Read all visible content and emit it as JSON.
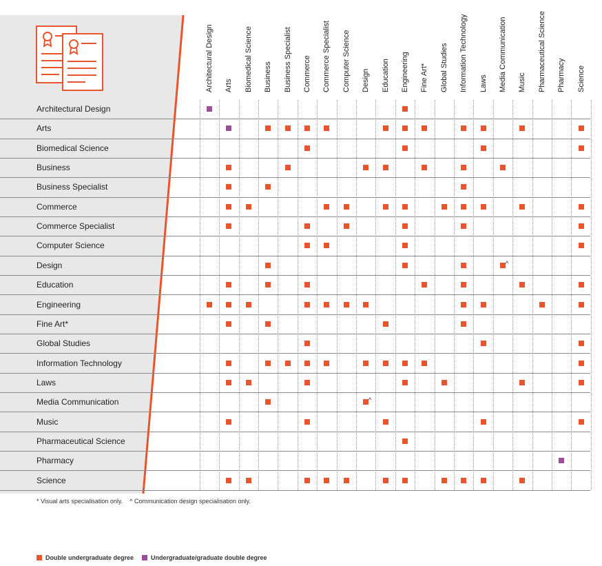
{
  "colors": {
    "double": "#e8552d",
    "ugpg": "#9b4f96",
    "panel": "#e8e8e8",
    "diagonal": "#e8552d",
    "icon": "#e8552d"
  },
  "icon": "certificate-documents-icon",
  "columns": [
    "Architectural Design",
    "Arts",
    "Biomedical Science",
    "Business",
    "Business Specialist",
    "Commerce",
    "Commerce Specialist",
    "Computer Science",
    "Design",
    "Education",
    "Engineering",
    "Fine Art*",
    "Global Studies",
    "Information Technology",
    "Laws",
    "Media Communication",
    "Music",
    "Pharmaceutical Science",
    "Pharmacy",
    "Science"
  ],
  "rows": [
    {
      "label": "Architectural Design",
      "marks": [
        {
          "col": 0,
          "type": "ugpg"
        },
        {
          "col": 10,
          "type": "double"
        }
      ]
    },
    {
      "label": "Arts",
      "marks": [
        {
          "col": 1,
          "type": "ugpg"
        },
        {
          "col": 3,
          "type": "double"
        },
        {
          "col": 4,
          "type": "double"
        },
        {
          "col": 5,
          "type": "double"
        },
        {
          "col": 6,
          "type": "double"
        },
        {
          "col": 9,
          "type": "double"
        },
        {
          "col": 10,
          "type": "double"
        },
        {
          "col": 11,
          "type": "double"
        },
        {
          "col": 13,
          "type": "double"
        },
        {
          "col": 14,
          "type": "double"
        },
        {
          "col": 16,
          "type": "double"
        },
        {
          "col": 19,
          "type": "double"
        }
      ]
    },
    {
      "label": "Biomedical Science",
      "marks": [
        {
          "col": 5,
          "type": "double"
        },
        {
          "col": 10,
          "type": "double"
        },
        {
          "col": 14,
          "type": "double"
        },
        {
          "col": 19,
          "type": "double"
        }
      ]
    },
    {
      "label": "Business",
      "marks": [
        {
          "col": 1,
          "type": "double"
        },
        {
          "col": 4,
          "type": "double"
        },
        {
          "col": 8,
          "type": "double"
        },
        {
          "col": 9,
          "type": "double"
        },
        {
          "col": 11,
          "type": "double"
        },
        {
          "col": 13,
          "type": "double"
        },
        {
          "col": 15,
          "type": "double"
        }
      ]
    },
    {
      "label": "Business Specialist",
      "marks": [
        {
          "col": 1,
          "type": "double"
        },
        {
          "col": 3,
          "type": "double"
        },
        {
          "col": 13,
          "type": "double"
        }
      ]
    },
    {
      "label": "Commerce",
      "marks": [
        {
          "col": 1,
          "type": "double"
        },
        {
          "col": 2,
          "type": "double"
        },
        {
          "col": 6,
          "type": "double"
        },
        {
          "col": 7,
          "type": "double"
        },
        {
          "col": 9,
          "type": "double"
        },
        {
          "col": 10,
          "type": "double"
        },
        {
          "col": 12,
          "type": "double"
        },
        {
          "col": 13,
          "type": "double"
        },
        {
          "col": 14,
          "type": "double"
        },
        {
          "col": 16,
          "type": "double"
        },
        {
          "col": 19,
          "type": "double"
        }
      ]
    },
    {
      "label": "Commerce Specialist",
      "marks": [
        {
          "col": 1,
          "type": "double"
        },
        {
          "col": 5,
          "type": "double"
        },
        {
          "col": 7,
          "type": "double"
        },
        {
          "col": 10,
          "type": "double"
        },
        {
          "col": 13,
          "type": "double"
        },
        {
          "col": 19,
          "type": "double"
        }
      ]
    },
    {
      "label": "Computer Science",
      "marks": [
        {
          "col": 5,
          "type": "double"
        },
        {
          "col": 6,
          "type": "double"
        },
        {
          "col": 10,
          "type": "double"
        },
        {
          "col": 19,
          "type": "double"
        }
      ]
    },
    {
      "label": "Design",
      "marks": [
        {
          "col": 3,
          "type": "double"
        },
        {
          "col": 10,
          "type": "double"
        },
        {
          "col": 13,
          "type": "double"
        },
        {
          "col": 15,
          "type": "double",
          "suffix": "^"
        }
      ]
    },
    {
      "label": "Education",
      "marks": [
        {
          "col": 1,
          "type": "double"
        },
        {
          "col": 3,
          "type": "double"
        },
        {
          "col": 5,
          "type": "double"
        },
        {
          "col": 11,
          "type": "double"
        },
        {
          "col": 13,
          "type": "double"
        },
        {
          "col": 16,
          "type": "double"
        },
        {
          "col": 19,
          "type": "double"
        }
      ]
    },
    {
      "label": "Engineering",
      "marks": [
        {
          "col": 0,
          "type": "double"
        },
        {
          "col": 1,
          "type": "double"
        },
        {
          "col": 2,
          "type": "double"
        },
        {
          "col": 5,
          "type": "double"
        },
        {
          "col": 6,
          "type": "double"
        },
        {
          "col": 7,
          "type": "double"
        },
        {
          "col": 8,
          "type": "double"
        },
        {
          "col": 13,
          "type": "double"
        },
        {
          "col": 14,
          "type": "double"
        },
        {
          "col": 17,
          "type": "double"
        },
        {
          "col": 19,
          "type": "double"
        }
      ]
    },
    {
      "label": "Fine Art*",
      "marks": [
        {
          "col": 1,
          "type": "double"
        },
        {
          "col": 3,
          "type": "double"
        },
        {
          "col": 9,
          "type": "double"
        },
        {
          "col": 13,
          "type": "double"
        }
      ]
    },
    {
      "label": "Global Studies",
      "marks": [
        {
          "col": 5,
          "type": "double"
        },
        {
          "col": 14,
          "type": "double"
        },
        {
          "col": 19,
          "type": "double"
        }
      ]
    },
    {
      "label": "Information Technology",
      "marks": [
        {
          "col": 1,
          "type": "double"
        },
        {
          "col": 3,
          "type": "double"
        },
        {
          "col": 4,
          "type": "double"
        },
        {
          "col": 5,
          "type": "double"
        },
        {
          "col": 6,
          "type": "double"
        },
        {
          "col": 8,
          "type": "double"
        },
        {
          "col": 9,
          "type": "double"
        },
        {
          "col": 10,
          "type": "double"
        },
        {
          "col": 11,
          "type": "double"
        },
        {
          "col": 19,
          "type": "double"
        }
      ]
    },
    {
      "label": "Laws",
      "marks": [
        {
          "col": 1,
          "type": "double"
        },
        {
          "col": 2,
          "type": "double"
        },
        {
          "col": 5,
          "type": "double"
        },
        {
          "col": 10,
          "type": "double"
        },
        {
          "col": 12,
          "type": "double"
        },
        {
          "col": 16,
          "type": "double"
        },
        {
          "col": 19,
          "type": "double"
        }
      ]
    },
    {
      "label": "Media Communication",
      "marks": [
        {
          "col": 3,
          "type": "double"
        },
        {
          "col": 8,
          "type": "double",
          "suffix": "^"
        }
      ]
    },
    {
      "label": "Music",
      "marks": [
        {
          "col": 1,
          "type": "double"
        },
        {
          "col": 5,
          "type": "double"
        },
        {
          "col": 9,
          "type": "double"
        },
        {
          "col": 14,
          "type": "double"
        },
        {
          "col": 19,
          "type": "double"
        }
      ]
    },
    {
      "label": "Pharmaceutical Science",
      "marks": [
        {
          "col": 10,
          "type": "double"
        }
      ]
    },
    {
      "label": "Pharmacy",
      "marks": [
        {
          "col": 18,
          "type": "ugpg"
        }
      ]
    },
    {
      "label": "Science",
      "marks": [
        {
          "col": 1,
          "type": "double"
        },
        {
          "col": 2,
          "type": "double"
        },
        {
          "col": 5,
          "type": "double"
        },
        {
          "col": 6,
          "type": "double"
        },
        {
          "col": 7,
          "type": "double"
        },
        {
          "col": 9,
          "type": "double"
        },
        {
          "col": 10,
          "type": "double"
        },
        {
          "col": 12,
          "type": "double"
        },
        {
          "col": 13,
          "type": "double"
        },
        {
          "col": 14,
          "type": "double"
        },
        {
          "col": 16,
          "type": "double"
        }
      ]
    }
  ],
  "footnote": "* Visual arts specialisation only.    ^ Communication design specialisation only.",
  "legend": [
    {
      "type": "double",
      "label": "Double undergraduate degree"
    },
    {
      "type": "ugpg",
      "label": "Undergraduate/graduate double degree"
    }
  ]
}
